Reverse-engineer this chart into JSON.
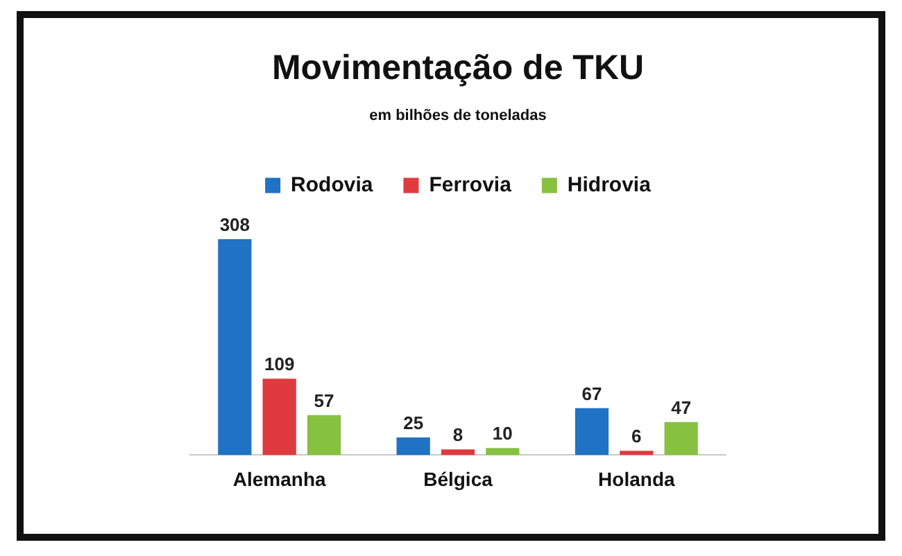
{
  "chart_data": {
    "type": "bar",
    "title": "Movimentação de TKU",
    "subtitle": "em bilhões de toneladas",
    "categories": [
      "Alemanha",
      "Bélgica",
      "Holanda"
    ],
    "series": [
      {
        "name": "Rodovia",
        "color": "#1f72c4",
        "values": [
          308,
          25,
          67
        ]
      },
      {
        "name": "Ferrovia",
        "color": "#e0393e",
        "values": [
          109,
          8,
          6
        ]
      },
      {
        "name": "Hidrovia",
        "color": "#86c140",
        "values": [
          57,
          10,
          47
        ]
      }
    ],
    "data_labels": true,
    "legend": "top",
    "grid": false,
    "tick_labels": "x"
  }
}
